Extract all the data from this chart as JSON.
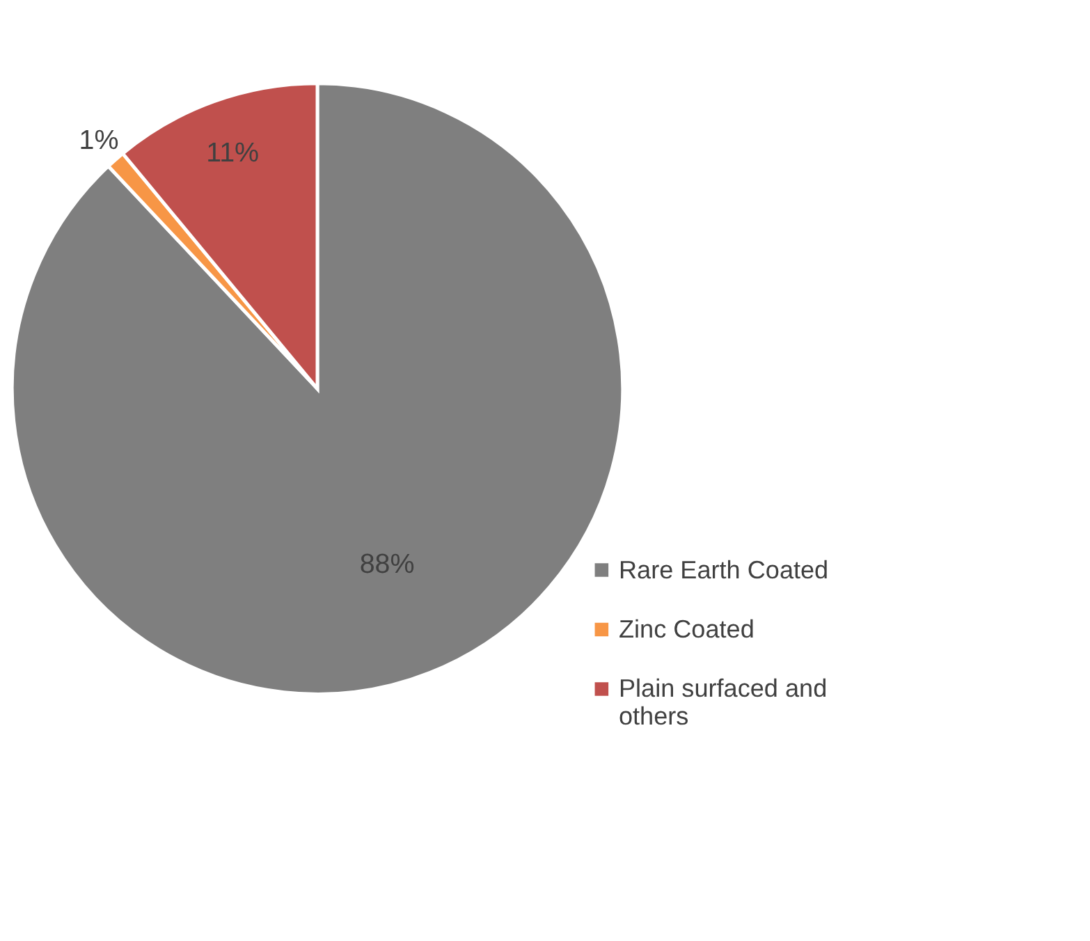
{
  "chart_data": {
    "type": "pie",
    "categories": [
      "Rare Earth Coated",
      "Zinc Coated",
      "Plain surfaced and others"
    ],
    "values": [
      88,
      1,
      11
    ],
    "colors": [
      "#7f7f7f",
      "#f79646",
      "#c0504d"
    ],
    "value_labels": [
      "88%",
      "1%",
      "11%"
    ],
    "legend": "bottom right"
  }
}
